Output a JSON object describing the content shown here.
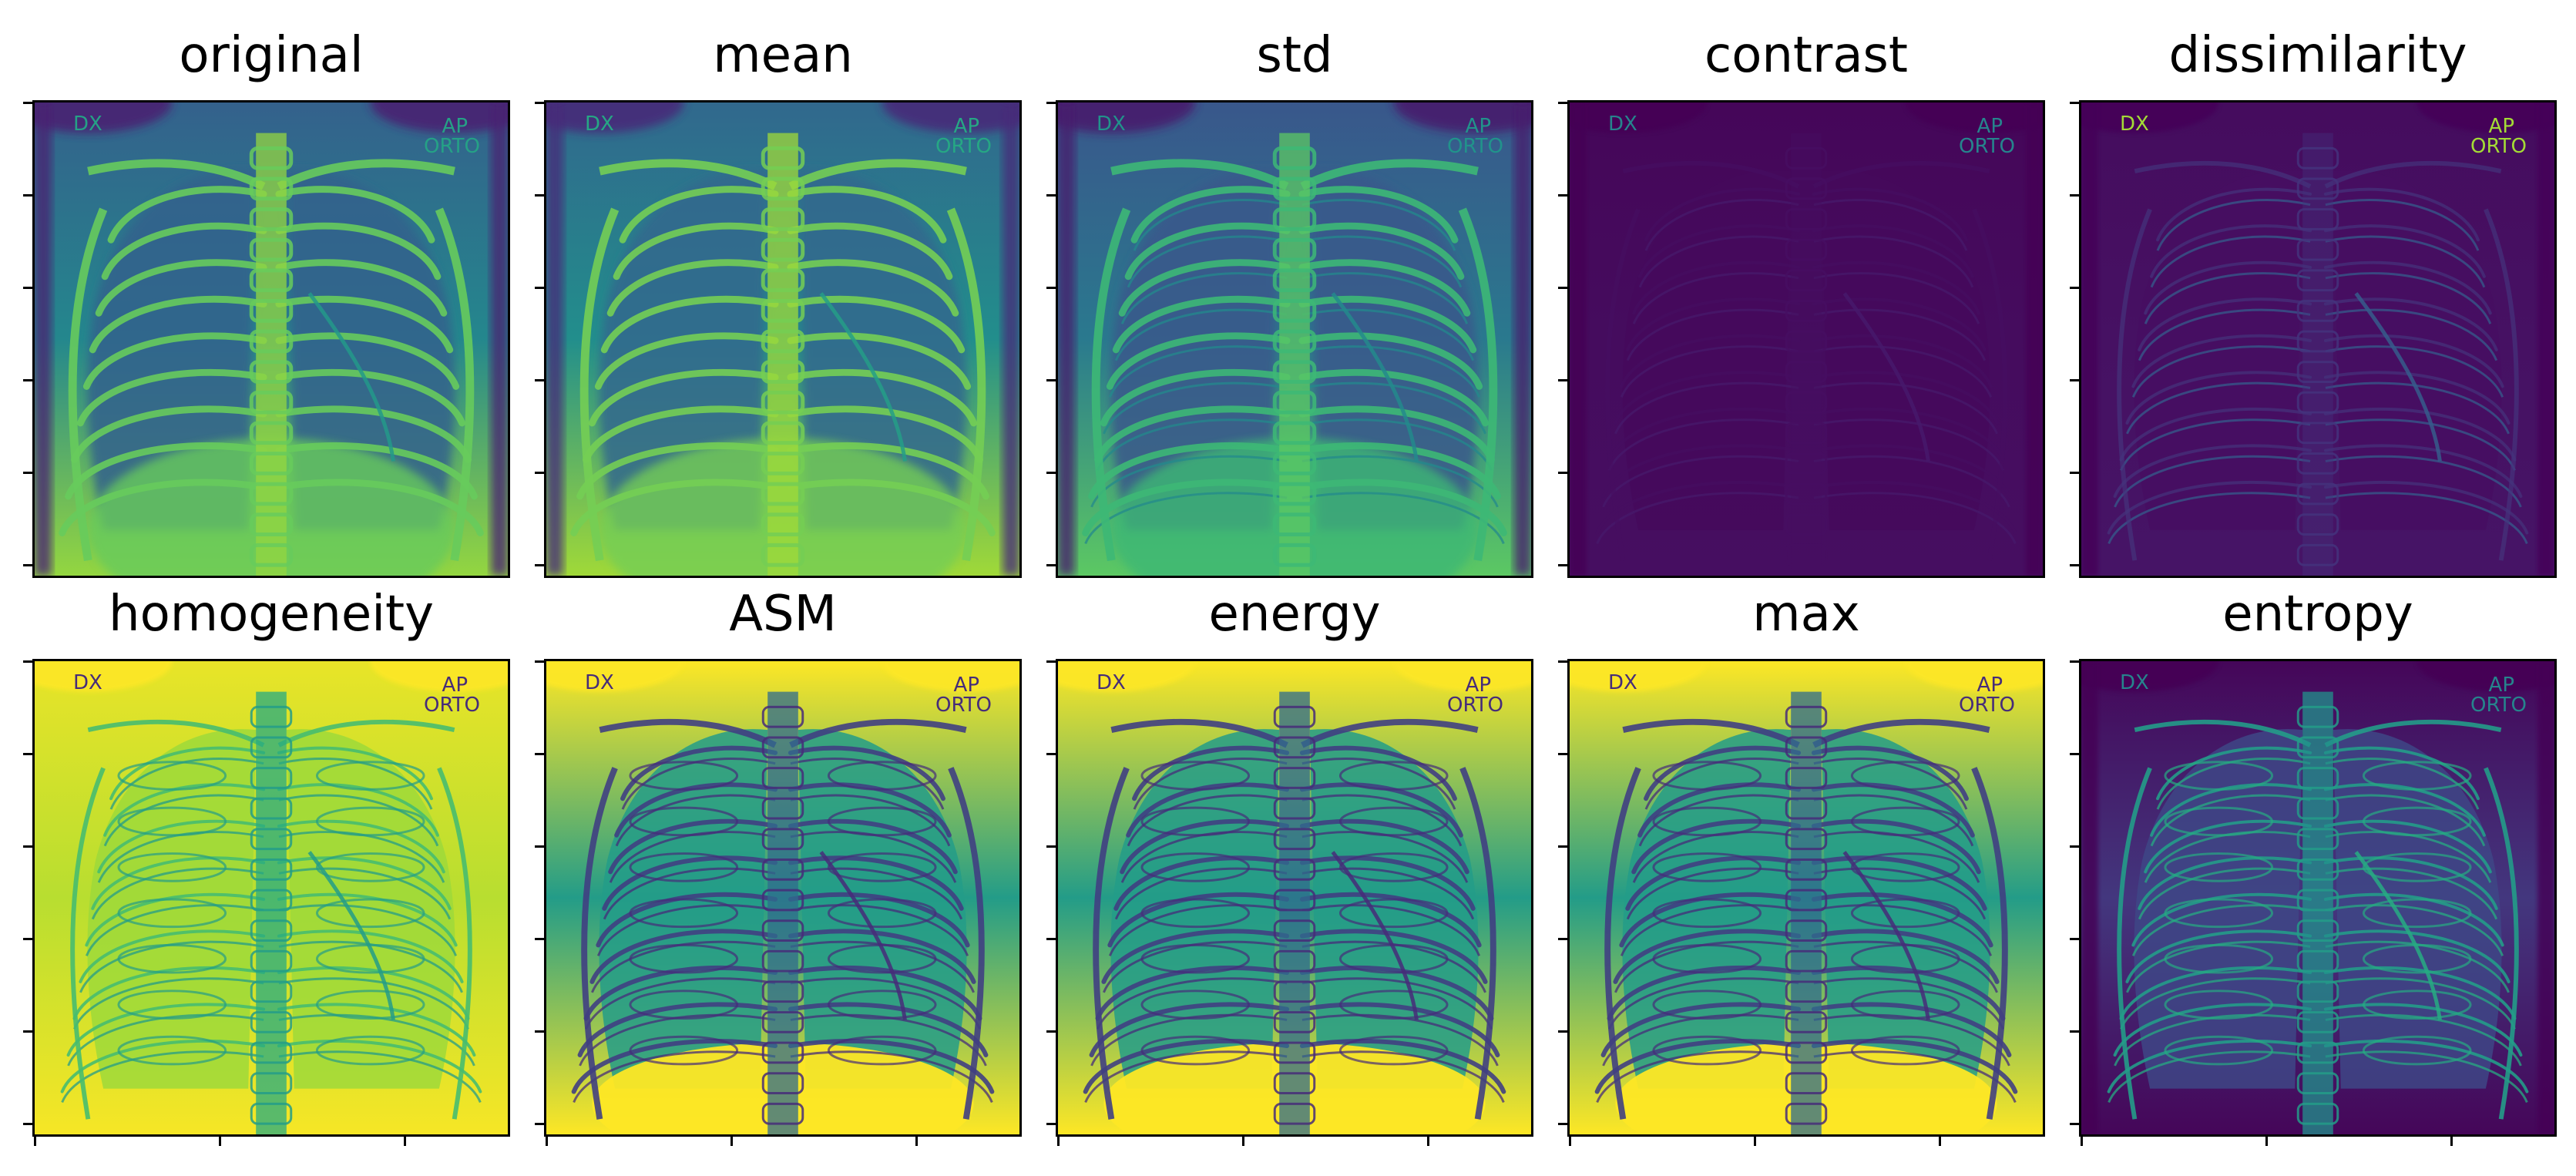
{
  "figure": {
    "panels": [
      {
        "id": "original",
        "title": "original",
        "lo": 0.12,
        "hi": 0.88,
        "style": "xray",
        "edges": false,
        "glow": 0.0,
        "border_dark": true
      },
      {
        "id": "mean",
        "title": "mean",
        "lo": 0.15,
        "hi": 0.9,
        "style": "xray",
        "edges": false,
        "glow": 0.0,
        "border_dark": true
      },
      {
        "id": "std",
        "title": "std",
        "lo": 0.1,
        "hi": 0.78,
        "style": "xray",
        "edges": true,
        "glow": 0.0,
        "border_dark": true
      },
      {
        "id": "contrast",
        "title": "contrast",
        "lo": 0.0,
        "hi": 0.12,
        "style": "flat",
        "edges": true,
        "glow": 0.05,
        "border_dark": true
      },
      {
        "id": "dissimilarity",
        "title": "dissimilarity",
        "lo": 0.02,
        "hi": 0.3,
        "style": "flat",
        "edges": true,
        "glow": 0.15,
        "border_dark": true
      },
      {
        "id": "homogeneity",
        "title": "homogeneity",
        "lo": 0.62,
        "hi": 0.98,
        "style": "inverse",
        "edges": true,
        "glow": 0.0,
        "border_dark": false
      },
      {
        "id": "ASM",
        "title": "ASM",
        "lo": 0.05,
        "hi": 1.0,
        "style": "contour",
        "edges": true,
        "glow": 0.0,
        "border_dark": false
      },
      {
        "id": "energy",
        "title": "energy",
        "lo": 0.1,
        "hi": 1.0,
        "style": "contour",
        "edges": true,
        "glow": 0.0,
        "border_dark": false
      },
      {
        "id": "max",
        "title": "max",
        "lo": 0.08,
        "hi": 1.0,
        "style": "contour",
        "edges": true,
        "glow": 0.0,
        "border_dark": false
      },
      {
        "id": "entropy",
        "title": "entropy",
        "lo": 0.0,
        "hi": 0.75,
        "style": "entropy",
        "edges": true,
        "glow": 0.0,
        "border_dark": true
      }
    ],
    "burn_in": {
      "left": "DX",
      "right_top": "AP",
      "right_bottom": "ORTO"
    },
    "colormap": "viridis",
    "colors": {
      "viridis_0": "#440154",
      "viridis_25": "#3b528b",
      "viridis_50": "#21918c",
      "viridis_75": "#5ec962",
      "viridis_100": "#fde725"
    }
  }
}
